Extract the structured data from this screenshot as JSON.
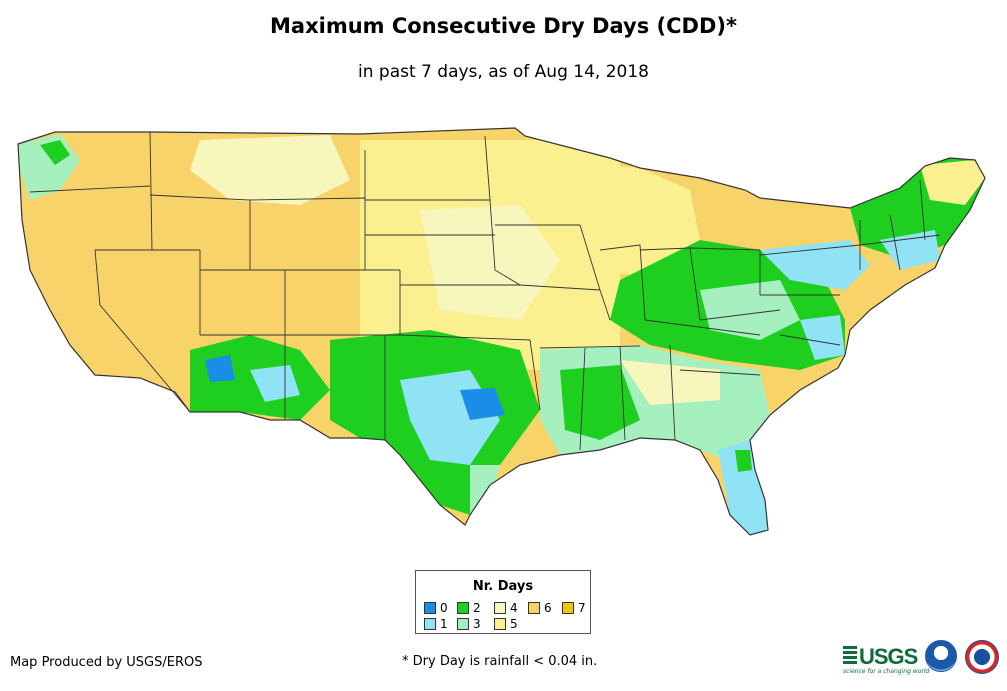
{
  "title": "Maximum Consecutive Dry Days (CDD)*",
  "subtitle": "in past 7 days, as of Aug 14, 2018",
  "legend": {
    "title": "Nr. Days",
    "items": [
      {
        "label": "0",
        "color": "#1a8ee6"
      },
      {
        "label": "1",
        "color": "#8fe3f5"
      },
      {
        "label": "2",
        "color": "#1fcf1f"
      },
      {
        "label": "3",
        "color": "#a6f0c0"
      },
      {
        "label": "4",
        "color": "#f7f7bd"
      },
      {
        "label": "5",
        "color": "#fbf08f"
      },
      {
        "label": "6",
        "color": "#f8d36a"
      },
      {
        "label": "7",
        "color": "#f5c400"
      }
    ]
  },
  "credit": "Map Produced by USGS/EROS",
  "footnote": "* Dry Day is rainfall < 0.04 in.",
  "logos": {
    "usgs": "USGS",
    "usgs_tagline": "science for a changing world",
    "noaa_icon": "noaa-logo",
    "nws_icon": "nws-logo"
  }
}
